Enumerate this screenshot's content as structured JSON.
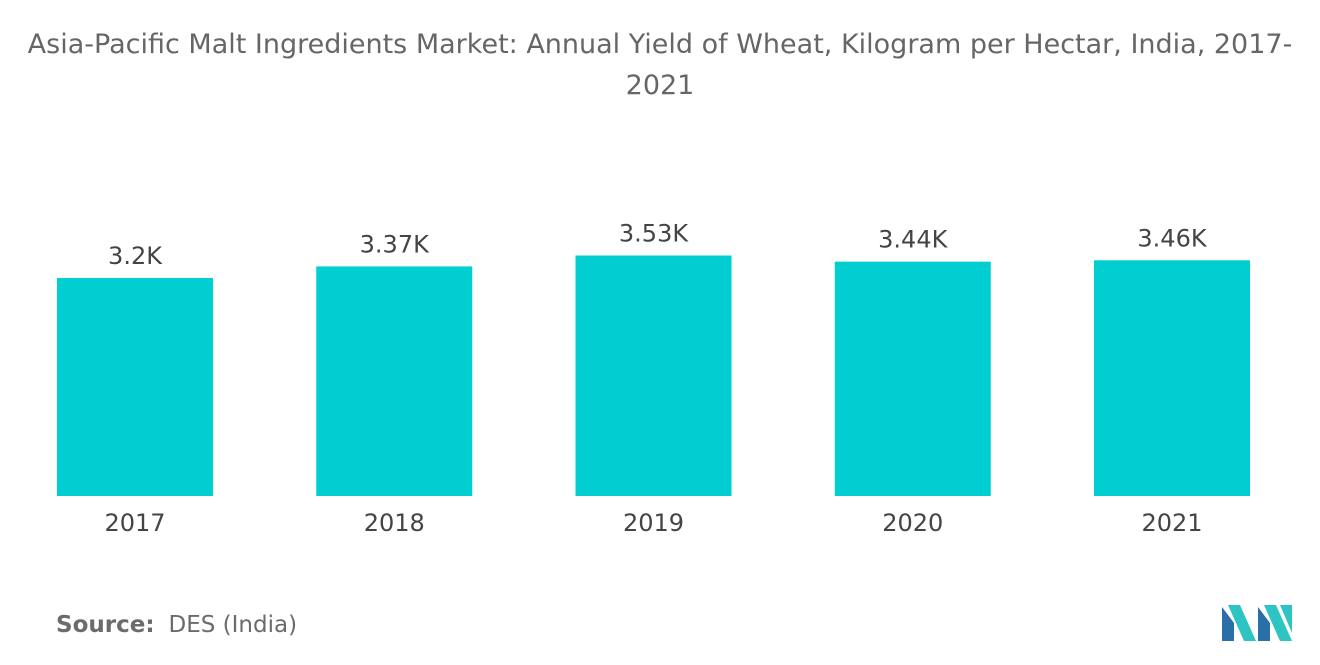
{
  "chart_data": {
    "type": "bar",
    "title": "Asia-Pacific Malt Ingredients Market: Annual Yield of Wheat, Kilogram per Hectar, India, 2017-2021",
    "categories": [
      "2017",
      "2018",
      "2019",
      "2020",
      "2021"
    ],
    "values": [
      3200,
      3370,
      3530,
      3440,
      3460
    ],
    "data_labels": [
      "3.2K",
      "3.37K",
      "3.53K",
      "3.44K",
      "3.46K"
    ],
    "xlabel": "",
    "ylabel": "",
    "ylim": [
      0,
      3600
    ],
    "grid": false,
    "legend": "none",
    "bar_color": "#00CED1"
  },
  "source": {
    "label": "Source:",
    "value": "DES (India)"
  },
  "logo": {
    "icon": "mordor-intelligence-logo",
    "colors": [
      "#2a6fa8",
      "#2ec4c4"
    ]
  }
}
